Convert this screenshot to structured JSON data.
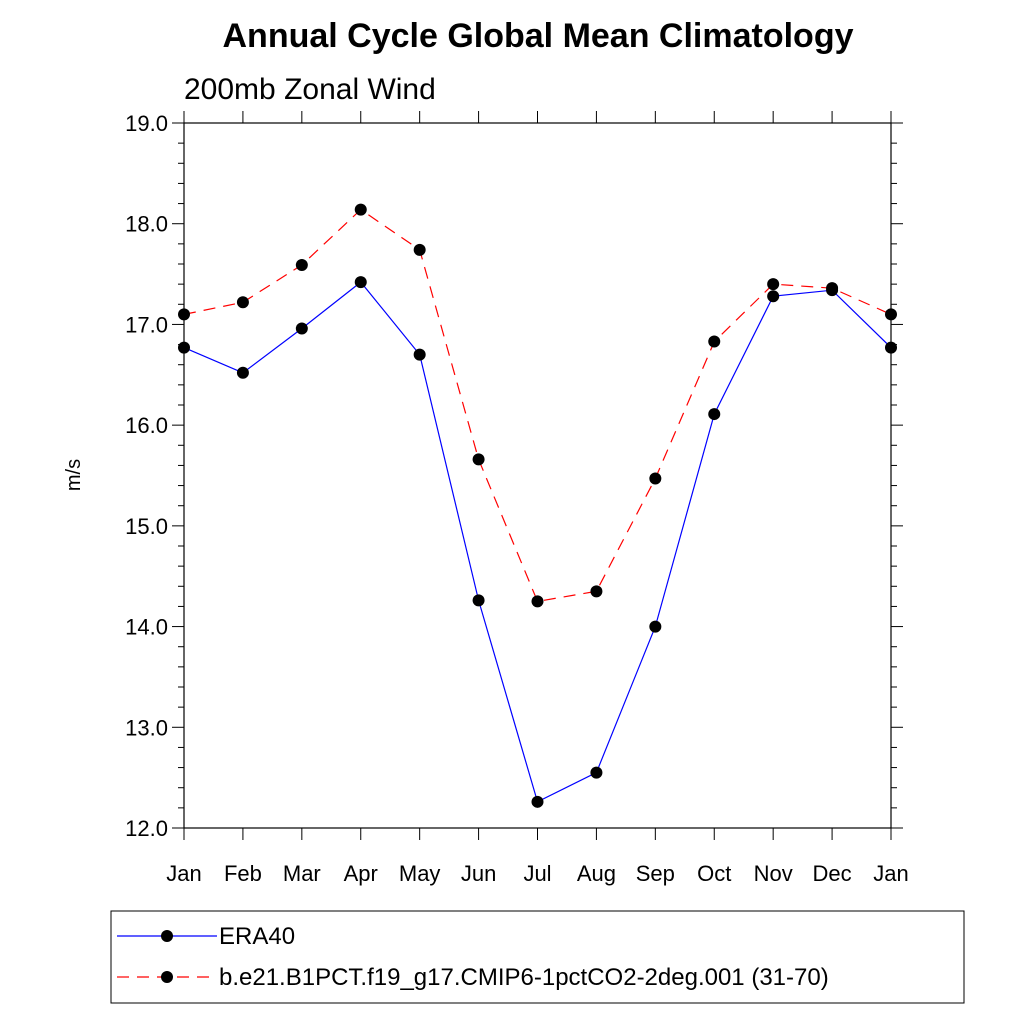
{
  "chart_data": {
    "type": "line",
    "title": "Annual Cycle Global Mean Climatology",
    "subtitle": "200mb Zonal Wind",
    "xlabel": "",
    "ylabel": "m/s",
    "ylim": [
      12.0,
      19.0
    ],
    "yticks": [
      12.0,
      13.0,
      14.0,
      15.0,
      16.0,
      17.0,
      18.0,
      19.0
    ],
    "ytick_labels": [
      "12.0",
      "13.0",
      "14.0",
      "15.0",
      "16.0",
      "17.0",
      "18.0",
      "19.0"
    ],
    "categories": [
      "Jan",
      "Feb",
      "Mar",
      "Apr",
      "May",
      "Jun",
      "Jul",
      "Aug",
      "Sep",
      "Oct",
      "Nov",
      "Dec",
      "Jan"
    ],
    "series": [
      {
        "name": "ERA40",
        "color": "#0000ff",
        "dash": "solid",
        "values": [
          16.77,
          16.52,
          16.96,
          17.42,
          16.7,
          14.26,
          12.26,
          12.55,
          14.0,
          16.11,
          17.28,
          17.34,
          16.77
        ]
      },
      {
        "name": "b.e21.B1PCT.f19_g17.CMIP6-1pctCO2-2deg.001 (31-70)",
        "color": "#ff0000",
        "dash": "dashed",
        "values": [
          17.1,
          17.22,
          17.59,
          18.14,
          17.74,
          15.66,
          14.25,
          14.35,
          15.47,
          16.83,
          17.4,
          17.36,
          17.1
        ]
      }
    ],
    "legend_position": "bottom"
  }
}
